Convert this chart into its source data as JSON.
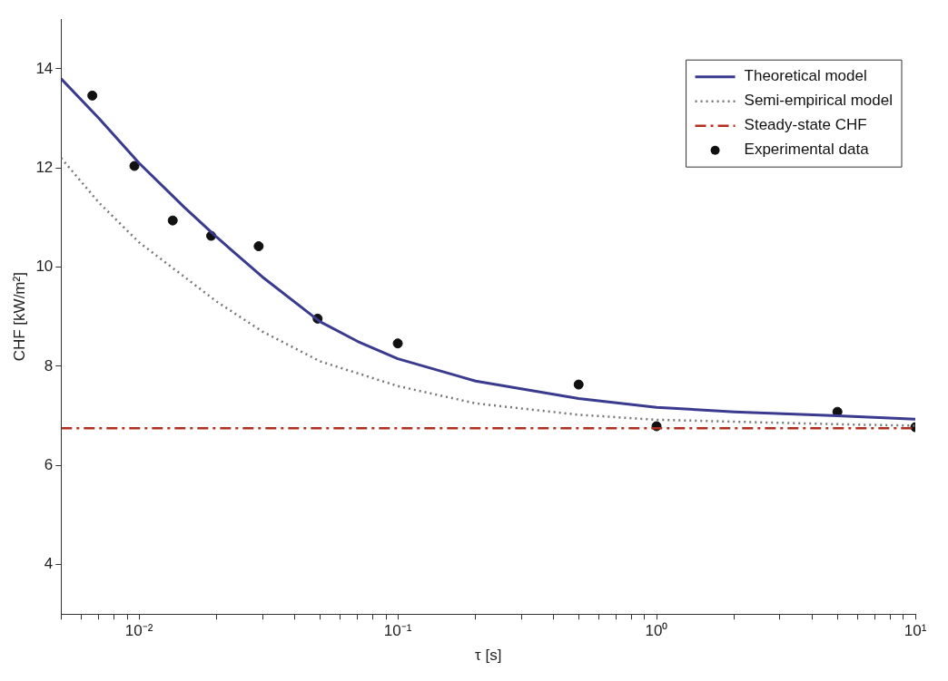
{
  "chart_data": {
    "type": "line",
    "xlabel": "τ [s]",
    "ylabel": "CHF [kW/m²]",
    "log": "x",
    "grid": false,
    "legend": "top right",
    "xlim": [
      0.005,
      10
    ],
    "ylim": [
      3,
      15
    ],
    "xticks": [
      {
        "value": 0.005,
        "label": null
      },
      {
        "value": 0.006,
        "label": null
      },
      {
        "value": 0.007,
        "label": null
      },
      {
        "value": 0.008,
        "label": null
      },
      {
        "value": 0.009,
        "label": null
      },
      {
        "value": 0.01,
        "label": "10⁻²"
      },
      {
        "value": 0.02,
        "label": null
      },
      {
        "value": 0.03,
        "label": null
      },
      {
        "value": 0.04,
        "label": null
      },
      {
        "value": 0.05,
        "label": null
      },
      {
        "value": 0.06,
        "label": null
      },
      {
        "value": 0.07,
        "label": null
      },
      {
        "value": 0.08,
        "label": null
      },
      {
        "value": 0.09,
        "label": null
      },
      {
        "value": 0.1,
        "label": "10⁻¹"
      },
      {
        "value": 0.2,
        "label": null
      },
      {
        "value": 0.3,
        "label": null
      },
      {
        "value": 0.4,
        "label": null
      },
      {
        "value": 0.5,
        "label": null
      },
      {
        "value": 0.6,
        "label": null
      },
      {
        "value": 0.7,
        "label": null
      },
      {
        "value": 0.8,
        "label": null
      },
      {
        "value": 0.9,
        "label": null
      },
      {
        "value": 1,
        "label": "10⁰"
      },
      {
        "value": 2,
        "label": null
      },
      {
        "value": 3,
        "label": null
      },
      {
        "value": 4,
        "label": null
      },
      {
        "value": 5,
        "label": null
      },
      {
        "value": 6,
        "label": null
      },
      {
        "value": 7,
        "label": null
      },
      {
        "value": 8,
        "label": null
      },
      {
        "value": 9,
        "label": null
      },
      {
        "value": 10,
        "label": "10¹"
      }
    ],
    "yticks": [
      4,
      6,
      8,
      10,
      12,
      14
    ],
    "series": [
      {
        "name": "Theoretical model",
        "color": "#3a3a8f",
        "line_style": "solid",
        "marker": "none",
        "x": [
          0.005,
          0.007,
          0.01,
          0.015,
          0.02,
          0.03,
          0.05,
          0.07,
          0.1,
          0.2,
          0.5,
          1,
          2,
          5,
          10
        ],
        "values": [
          13.8,
          13.0,
          12.1,
          11.2,
          10.6,
          9.8,
          8.9,
          8.5,
          8.15,
          7.7,
          7.35,
          7.17,
          7.08,
          7.0,
          6.93
        ]
      },
      {
        "name": "Semi-empirical model",
        "color": "#777777",
        "line_style": "dotted",
        "marker": "none",
        "x": [
          0.005,
          0.007,
          0.01,
          0.015,
          0.02,
          0.03,
          0.05,
          0.1,
          0.2,
          0.5,
          1,
          5,
          10
        ],
        "values": [
          12.2,
          11.3,
          10.5,
          9.8,
          9.3,
          8.7,
          8.1,
          7.6,
          7.25,
          7.02,
          6.92,
          6.83,
          6.8
        ]
      },
      {
        "name": "Steady-state CHF",
        "color": "#b03020",
        "line_style": "dashed",
        "marker": "none",
        "x": [
          0.005,
          10
        ],
        "values": [
          6.75,
          6.75
        ]
      },
      {
        "name": "Experimental data",
        "type": "scatter",
        "color": "#111111",
        "marker": "circle",
        "x": [
          0.0066,
          0.0096,
          0.0135,
          0.019,
          0.029,
          0.049,
          0.1,
          0.5,
          1,
          5,
          10
        ],
        "values": [
          13.46,
          12.04,
          10.94,
          10.63,
          10.42,
          8.96,
          8.46,
          7.63,
          6.79,
          7.08,
          6.77
        ]
      }
    ]
  }
}
